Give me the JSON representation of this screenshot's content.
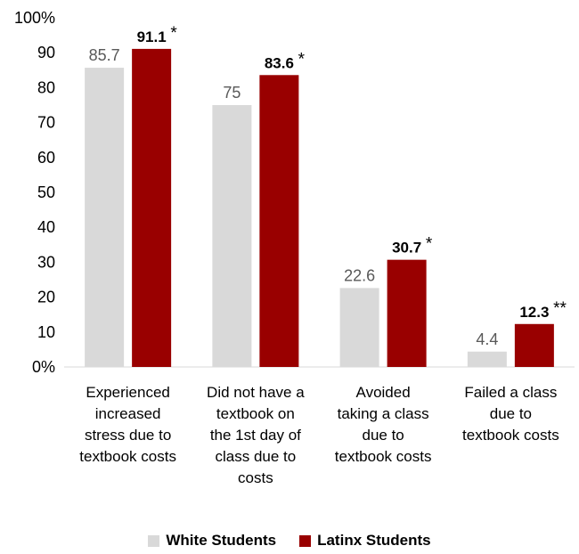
{
  "chart_data": {
    "type": "bar",
    "categories": [
      [
        "Experienced",
        "increased",
        "stress due to",
        "textbook costs"
      ],
      [
        "Did not have a",
        "textbook on",
        "the 1st day of",
        "class due to",
        "costs"
      ],
      [
        "Avoided",
        "taking a class",
        "due to",
        "textbook costs"
      ],
      [
        "Failed a class",
        "due to",
        "textbook costs"
      ]
    ],
    "series": [
      {
        "name": "White Students",
        "color": "#d9d9d9",
        "values": [
          85.7,
          75,
          22.6,
          4.4
        ],
        "labels": [
          "85.7",
          "75",
          "22.6",
          "4.4"
        ]
      },
      {
        "name": "Latinx Students",
        "color": "#990000",
        "values": [
          91.1,
          83.6,
          30.7,
          12.3
        ],
        "labels": [
          "91.1",
          "83.6",
          "30.7",
          "12.3"
        ],
        "markers": [
          "*",
          "*",
          "*",
          "**"
        ]
      }
    ],
    "yticks": [
      "0%",
      "10",
      "20",
      "30",
      "40",
      "50",
      "60",
      "70",
      "80",
      "90",
      "100%"
    ],
    "ylim": [
      0,
      100
    ],
    "legend_position": "bottom",
    "grid": false
  }
}
